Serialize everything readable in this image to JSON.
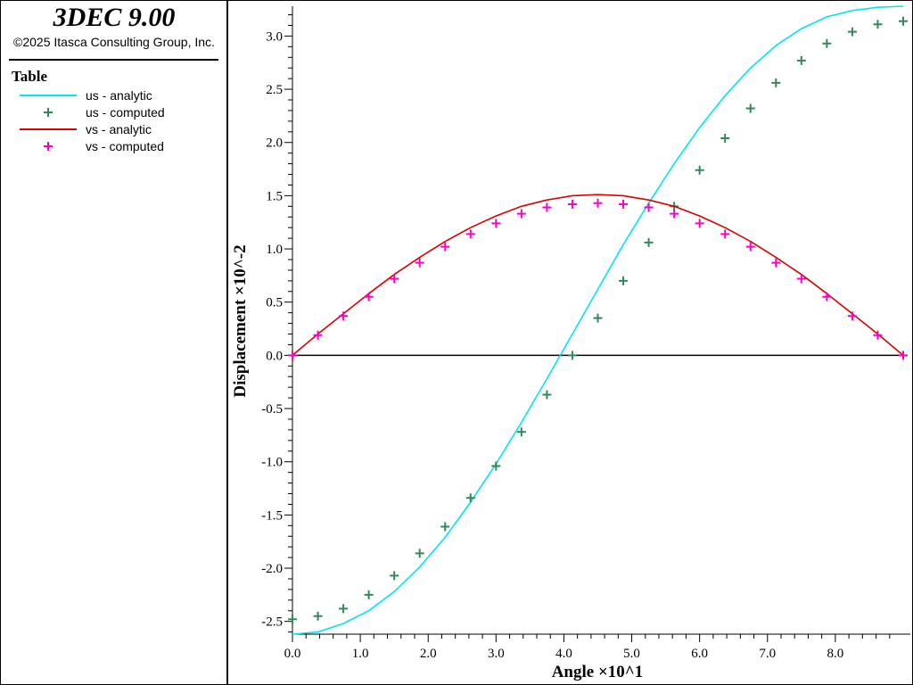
{
  "app": {
    "title": "3DEC 9.00",
    "copyright": "©2025 Itasca Consulting Group, Inc."
  },
  "legend": {
    "title": "Table",
    "items": [
      {
        "label": "us - analytic",
        "kind": "line",
        "color": "#00e5ee"
      },
      {
        "label": "us - computed",
        "kind": "marker",
        "color": "#2e8b57"
      },
      {
        "label": "vs - analytic",
        "kind": "line",
        "color": "#dd0000"
      },
      {
        "label": "vs - computed",
        "kind": "marker",
        "color": "#ff00cc"
      }
    ]
  },
  "chart_data": {
    "type": "line",
    "xlabel": "Angle ×10^1",
    "ylabel": "Displacement ×10^-2",
    "xlim": [
      0,
      9.0
    ],
    "ylim": [
      -2.62,
      3.28
    ],
    "xticks": [
      "0.0",
      "1.0",
      "2.0",
      "3.0",
      "4.0",
      "5.0",
      "6.0",
      "7.0",
      "8.0"
    ],
    "yticks": [
      "-2.5",
      "-2.0",
      "-1.5",
      "-1.0",
      "-0.5",
      "0.0",
      "0.5",
      "1.0",
      "1.5",
      "2.0",
      "2.5",
      "3.0"
    ],
    "zero_line": true,
    "grid": false,
    "series": [
      {
        "name": "us - analytic",
        "type": "line",
        "color": "#00e5ee",
        "x": [
          0.0,
          0.375,
          0.75,
          1.125,
          1.5,
          1.875,
          2.25,
          2.625,
          3.0,
          3.375,
          3.75,
          4.125,
          4.5,
          4.875,
          5.25,
          5.625,
          6.0,
          6.375,
          6.75,
          7.125,
          7.5,
          7.875,
          8.25,
          8.625,
          9.0
        ],
        "y": [
          -2.62,
          -2.6,
          -2.52,
          -2.4,
          -2.22,
          -1.99,
          -1.71,
          -1.38,
          -1.02,
          -0.63,
          -0.22,
          0.2,
          0.62,
          1.04,
          1.43,
          1.8,
          2.14,
          2.44,
          2.7,
          2.91,
          3.07,
          3.18,
          3.24,
          3.27,
          3.28
        ]
      },
      {
        "name": "us - computed",
        "type": "scatter",
        "color": "#2e8b57",
        "x": [
          0.0,
          0.375,
          0.75,
          1.125,
          1.5,
          1.875,
          2.25,
          2.625,
          3.0,
          3.375,
          3.75,
          4.125,
          4.5,
          4.875,
          5.25,
          5.625,
          6.0,
          6.375,
          6.75,
          7.125,
          7.5,
          7.875,
          8.25,
          8.625,
          9.0
        ],
        "y": [
          -2.48,
          -2.45,
          -2.38,
          -2.25,
          -2.07,
          -1.86,
          -1.61,
          -1.34,
          -1.04,
          -0.72,
          -0.37,
          0.0,
          0.35,
          0.7,
          1.06,
          1.4,
          1.74,
          2.04,
          2.32,
          2.56,
          2.77,
          2.93,
          3.04,
          3.11,
          3.14
        ]
      },
      {
        "name": "vs - analytic",
        "type": "line",
        "color": "#dd0000",
        "x": [
          0.0,
          0.375,
          0.75,
          1.125,
          1.5,
          1.875,
          2.25,
          2.625,
          3.0,
          3.375,
          3.75,
          4.125,
          4.5,
          4.875,
          5.25,
          5.625,
          6.0,
          6.375,
          6.75,
          7.125,
          7.5,
          7.875,
          8.25,
          8.625,
          9.0
        ],
        "y": [
          0.0,
          0.2,
          0.39,
          0.58,
          0.76,
          0.92,
          1.07,
          1.2,
          1.31,
          1.4,
          1.46,
          1.5,
          1.51,
          1.5,
          1.46,
          1.4,
          1.31,
          1.2,
          1.07,
          0.92,
          0.76,
          0.58,
          0.39,
          0.2,
          0.0
        ]
      },
      {
        "name": "vs - computed",
        "type": "scatter",
        "color": "#ff00cc",
        "x": [
          0.0,
          0.375,
          0.75,
          1.125,
          1.5,
          1.875,
          2.25,
          2.625,
          3.0,
          3.375,
          3.75,
          4.125,
          4.5,
          4.875,
          5.25,
          5.625,
          6.0,
          6.375,
          6.75,
          7.125,
          7.5,
          7.875,
          8.25,
          8.625,
          9.0
        ],
        "y": [
          0.0,
          0.19,
          0.37,
          0.55,
          0.72,
          0.87,
          1.02,
          1.14,
          1.24,
          1.33,
          1.39,
          1.42,
          1.43,
          1.42,
          1.39,
          1.33,
          1.24,
          1.14,
          1.02,
          0.87,
          0.72,
          0.55,
          0.37,
          0.19,
          0.0
        ]
      }
    ]
  }
}
